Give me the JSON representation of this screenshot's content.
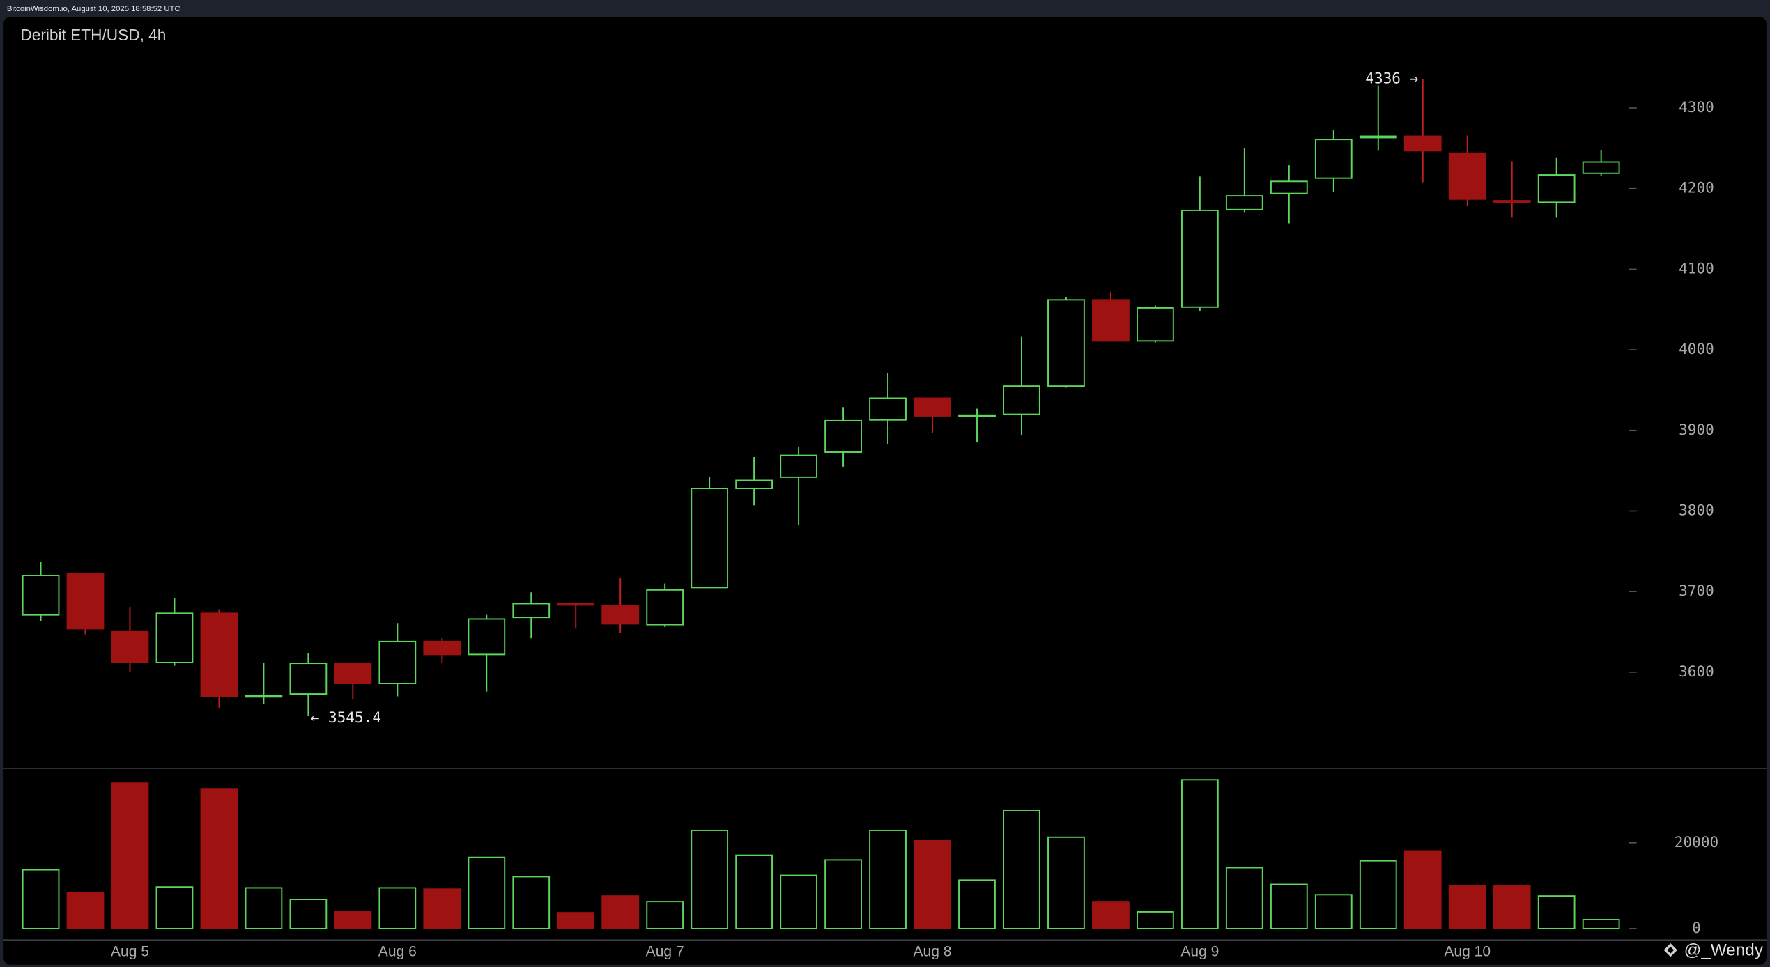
{
  "header": "BitcoinWisdom.io, August 10, 2025 18:58:52 UTC",
  "chart_data": {
    "type": "candlestick",
    "title": "Deribit ETH/USD, 4h",
    "categories": [
      null,
      null,
      "Aug 5",
      null,
      null,
      null,
      null,
      null,
      "Aug 6",
      null,
      null,
      null,
      null,
      null,
      "Aug 7",
      null,
      null,
      null,
      null,
      null,
      "Aug 8",
      null,
      null,
      null,
      null,
      null,
      "Aug 9",
      null,
      null,
      null,
      null,
      null,
      "Aug 10",
      null,
      null,
      null
    ],
    "open": [
      3671,
      3722,
      3651,
      3612,
      3673,
      3570,
      3573,
      3611,
      3586,
      3638,
      3622,
      3668,
      3685,
      3682,
      3659,
      3705,
      3828,
      3842,
      3873,
      3913,
      3940,
      3918,
      3920,
      3955,
      4062,
      4011,
      4053,
      4174,
      4194,
      4213,
      4264,
      4265,
      4244,
      4185,
      4183,
      4219
    ],
    "high": [
      3737,
      3722,
      3681,
      3692,
      3678,
      3612,
      3624,
      3612,
      3661,
      3642,
      3671,
      3699,
      3686,
      3717,
      3710,
      3842,
      3867,
      3880,
      3929,
      3971,
      3940,
      3927,
      4016,
      4065,
      4072,
      4055,
      4215,
      4250,
      4229,
      4273,
      4328,
      4336,
      4266,
      4234,
      4238,
      4248
    ],
    "low": [
      3663,
      3647,
      3600,
      3608,
      3556,
      3560,
      3545.4,
      3566,
      3570,
      3611,
      3576,
      3642,
      3654,
      3649,
      3656,
      3705,
      3807,
      3783,
      3855,
      3883,
      3897,
      3885,
      3894,
      3953,
      4011,
      4009,
      4048,
      4170,
      4157,
      4196,
      4247,
      4208,
      4178,
      4164,
      4164,
      4216
    ],
    "close": [
      3720,
      3654,
      3612,
      3673,
      3570,
      3571,
      3611,
      3586,
      3638,
      3622,
      3666,
      3685,
      3684,
      3660,
      3702,
      3828,
      3838,
      3869,
      3912,
      3940,
      3918,
      3919,
      3955,
      4062,
      4011,
      4052,
      4173,
      4191,
      4209,
      4261,
      4265,
      4247,
      4187,
      4184,
      4217,
      4233
    ],
    "up_color": "#5cd65c",
    "down_color": "#9e1212",
    "ylim": [
      3482,
      4413
    ],
    "yticks": [
      3600,
      3700,
      3800,
      3900,
      4000,
      4100,
      4200,
      4300
    ],
    "annotations": [
      {
        "text": "4336 →",
        "value": 4336
      },
      {
        "text": "← 3545.4",
        "value": 3545.4
      }
    ],
    "volume": {
      "values": [
        13700,
        8400,
        33900,
        9700,
        32600,
        9500,
        6800,
        3900,
        9500,
        9200,
        16600,
        12100,
        3700,
        7600,
        6300,
        22900,
        17100,
        12400,
        16000,
        22900,
        20500,
        11300,
        27600,
        21300,
        6300,
        3900,
        34700,
        14200,
        10300,
        7900,
        15800,
        18100,
        10000,
        10000,
        7600,
        2100
      ],
      "ylim": [
        0,
        36300
      ],
      "yticks": [
        0,
        20000
      ]
    },
    "watermark": "@_Wendy"
  }
}
